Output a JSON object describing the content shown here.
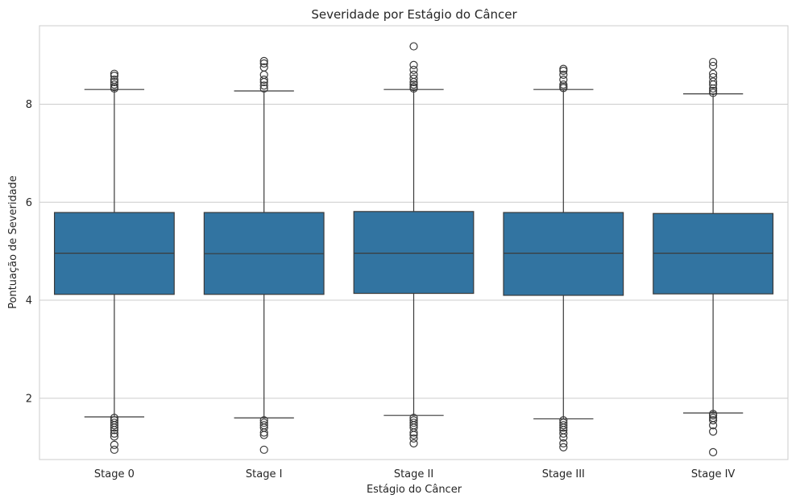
{
  "chart_data": {
    "type": "box",
    "title": "Severidade por Estágio do Câncer",
    "xlabel": "Estágio do Câncer",
    "ylabel": "Pontuação de Severidade",
    "ylim": [
      0.75,
      9.6
    ],
    "yticks": [
      2,
      4,
      6,
      8
    ],
    "grid": true,
    "box_color": "#3274a1",
    "line_color": "#3a3a3a",
    "categories": [
      "Stage 0",
      "Stage I",
      "Stage II",
      "Stage III",
      "Stage IV"
    ],
    "boxes": [
      {
        "q1": 4.12,
        "median": 4.96,
        "q3": 5.79,
        "whislo": 1.62,
        "whishi": 8.3,
        "fliers_low": [
          1.6,
          1.55,
          1.5,
          1.45,
          1.4,
          1.35,
          1.28,
          1.22,
          1.05,
          0.95
        ],
        "fliers_high": [
          8.32,
          8.35,
          8.4,
          8.45,
          8.5,
          8.58,
          8.62
        ]
      },
      {
        "q1": 4.12,
        "median": 4.95,
        "q3": 5.79,
        "whislo": 1.6,
        "whishi": 8.27,
        "fliers_low": [
          1.55,
          1.5,
          1.45,
          1.4,
          1.3,
          1.25,
          0.95
        ],
        "fliers_high": [
          8.32,
          8.38,
          8.45,
          8.5,
          8.6,
          8.75,
          8.83,
          8.88
        ]
      },
      {
        "q1": 4.14,
        "median": 4.96,
        "q3": 5.81,
        "whislo": 1.65,
        "whishi": 8.3,
        "fliers_low": [
          1.6,
          1.55,
          1.5,
          1.45,
          1.4,
          1.3,
          1.25,
          1.18,
          1.08
        ],
        "fliers_high": [
          8.32,
          8.35,
          8.4,
          8.45,
          8.52,
          8.6,
          8.7,
          8.8,
          9.18
        ]
      },
      {
        "q1": 4.1,
        "median": 4.96,
        "q3": 5.79,
        "whislo": 1.58,
        "whishi": 8.3,
        "fliers_low": [
          1.55,
          1.5,
          1.45,
          1.4,
          1.35,
          1.28,
          1.2,
          1.08,
          1.0
        ],
        "fliers_high": [
          8.33,
          8.36,
          8.4,
          8.5,
          8.6,
          8.68,
          8.72
        ]
      },
      {
        "q1": 4.13,
        "median": 4.96,
        "q3": 5.77,
        "whislo": 1.7,
        "whishi": 8.21,
        "fliers_low": [
          1.68,
          1.65,
          1.6,
          1.55,
          1.45,
          1.32,
          0.9
        ],
        "fliers_high": [
          8.23,
          8.27,
          8.32,
          8.4,
          8.46,
          8.55,
          8.62,
          8.78,
          8.86
        ]
      }
    ]
  }
}
